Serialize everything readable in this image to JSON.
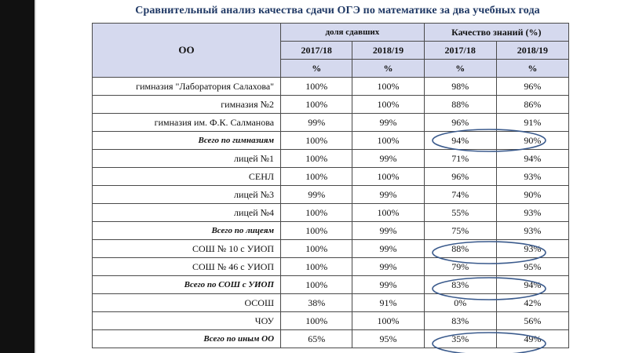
{
  "title": "Сравнительный анализ качества сдачи ОГЭ по математике за два учебных года",
  "header": {
    "oo": "ОО",
    "group_share": "доля сдавших",
    "group_quality": "Качество знаний (%)",
    "year1": "2017/18",
    "year2": "2018/19",
    "unit": "%"
  },
  "rows": [
    {
      "name": "гимназия \"Лаборатория Салахова\"",
      "s1": "100%",
      "s2": "100%",
      "q1": "98%",
      "q2": "96%",
      "total": false
    },
    {
      "name": "гимназия №2",
      "s1": "100%",
      "s2": "100%",
      "q1": "88%",
      "q2": "86%",
      "total": false
    },
    {
      "name": "гимназия им. Ф.К. Салманова",
      "s1": "99%",
      "s2": "99%",
      "q1": "96%",
      "q2": "91%",
      "total": false
    },
    {
      "name": "Всего по гимназиям",
      "s1": "100%",
      "s2": "100%",
      "q1": "94%",
      "q2": "90%",
      "total": true
    },
    {
      "name": "лицей №1",
      "s1": "100%",
      "s2": "99%",
      "q1": "71%",
      "q2": "94%",
      "total": false
    },
    {
      "name": "СЕНЛ",
      "s1": "100%",
      "s2": "100%",
      "q1": "96%",
      "q2": "93%",
      "total": false
    },
    {
      "name": "лицей №3",
      "s1": "99%",
      "s2": "99%",
      "q1": "74%",
      "q2": "90%",
      "total": false
    },
    {
      "name": "лицей №4",
      "s1": "100%",
      "s2": "100%",
      "q1": "55%",
      "q2": "93%",
      "total": false
    },
    {
      "name": "Всего по лицеям",
      "s1": "100%",
      "s2": "99%",
      "q1": "75%",
      "q2": "93%",
      "total": true
    },
    {
      "name": "СОШ № 10 с УИОП",
      "s1": "100%",
      "s2": "99%",
      "q1": "88%",
      "q2": "93%",
      "total": false
    },
    {
      "name": "СОШ № 46 с УИОП",
      "s1": "100%",
      "s2": "99%",
      "q1": "79%",
      "q2": "95%",
      "total": false
    },
    {
      "name": "Всего по СОШ с УИОП",
      "s1": "100%",
      "s2": "99%",
      "q1": "83%",
      "q2": "94%",
      "total": true
    },
    {
      "name": "ОСОШ",
      "s1": "38%",
      "s2": "91%",
      "q1": "0%",
      "q2": "42%",
      "total": false
    },
    {
      "name": "ЧОУ",
      "s1": "100%",
      "s2": "100%",
      "q1": "83%",
      "q2": "56%",
      "total": false
    },
    {
      "name": "Всего по иным ОО",
      "s1": "65%",
      "s2": "95%",
      "q1": "35%",
      "q2": "49%",
      "total": true
    }
  ],
  "colors": {
    "header_bg": "#d5d9ee",
    "title": "#1f3864",
    "highlight_oval": "#3a5a8c"
  }
}
